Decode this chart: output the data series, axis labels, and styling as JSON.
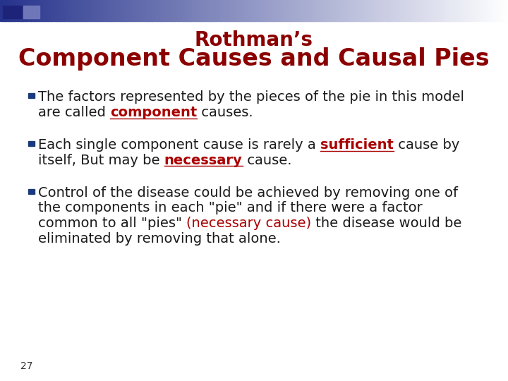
{
  "title_line1": "Rothman’s",
  "title_line2": "Component Causes and Causal Pies",
  "title_color": "#8B0000",
  "background_color": "#FFFFFF",
  "slide_number": "27",
  "font_size_title1": 20,
  "font_size_title2": 24,
  "font_size_body": 14,
  "font_size_slide_num": 10,
  "text_color": "#1A1A1A",
  "highlight_color": "#AA0000",
  "bullet_color": "#1A3A7A",
  "bullet_points": [
    {
      "lines": [
        [
          {
            "text": "The factors represented by the pieces of the pie in this model",
            "color": "#1A1A1A",
            "bold": false,
            "underline": false
          }
        ],
        [
          {
            "text": "are called ",
            "color": "#1A1A1A",
            "bold": false,
            "underline": false
          },
          {
            "text": "component",
            "color": "#AA0000",
            "bold": true,
            "underline": true
          },
          {
            "text": " causes.",
            "color": "#1A1A1A",
            "bold": false,
            "underline": false
          }
        ]
      ]
    },
    {
      "lines": [
        [
          {
            "text": "Each single component cause is rarely a ",
            "color": "#1A1A1A",
            "bold": false,
            "underline": false
          },
          {
            "text": "sufficient",
            "color": "#AA0000",
            "bold": true,
            "underline": true
          },
          {
            "text": " cause by",
            "color": "#1A1A1A",
            "bold": false,
            "underline": false
          }
        ],
        [
          {
            "text": "itself, But may be ",
            "color": "#1A1A1A",
            "bold": false,
            "underline": false
          },
          {
            "text": "necessary",
            "color": "#AA0000",
            "bold": true,
            "underline": true
          },
          {
            "text": " cause.",
            "color": "#1A1A1A",
            "bold": false,
            "underline": false
          }
        ]
      ]
    },
    {
      "lines": [
        [
          {
            "text": "Control of the disease could be achieved by removing one of",
            "color": "#1A1A1A",
            "bold": false,
            "underline": false
          }
        ],
        [
          {
            "text": "the components in each \"pie\" and if there were a factor",
            "color": "#1A1A1A",
            "bold": false,
            "underline": false
          }
        ],
        [
          {
            "text": "common to all \"pies\" ",
            "color": "#1A1A1A",
            "bold": false,
            "underline": false
          },
          {
            "text": "(necessary cause)",
            "color": "#AA0000",
            "bold": false,
            "underline": false
          },
          {
            "text": " the disease would be",
            "color": "#1A1A1A",
            "bold": false,
            "underline": false
          }
        ],
        [
          {
            "text": "eliminated by removing that alone.",
            "color": "#1A1A1A",
            "bold": false,
            "underline": false
          }
        ]
      ]
    }
  ]
}
